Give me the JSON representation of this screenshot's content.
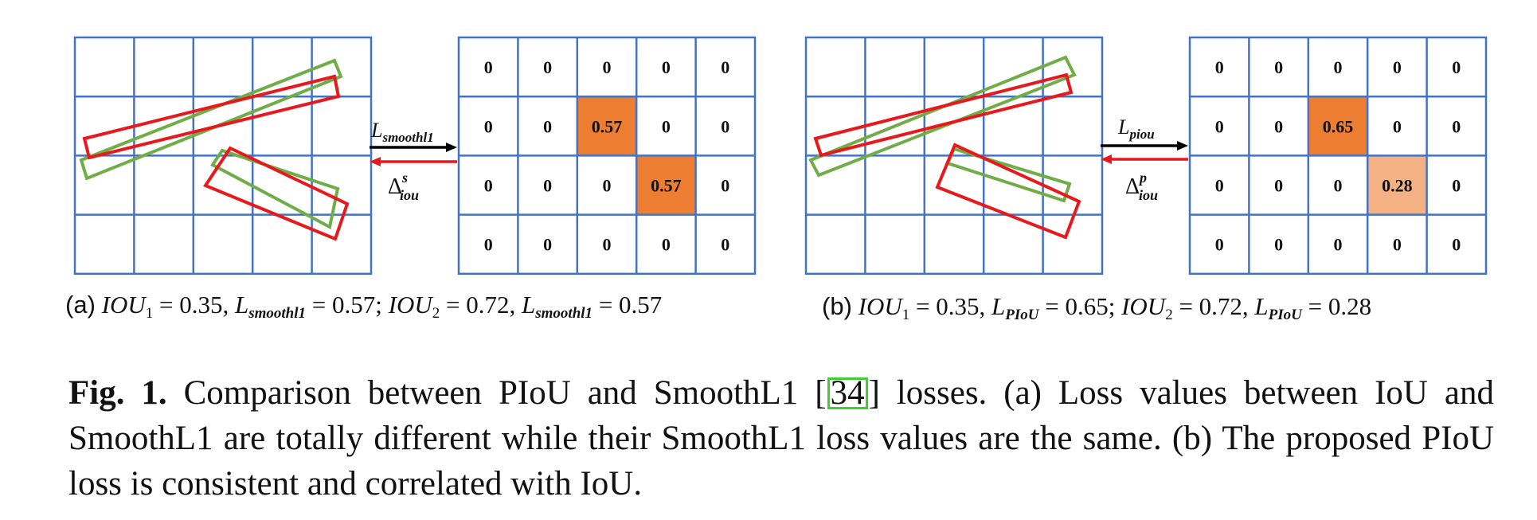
{
  "panels": [
    {
      "id": "a",
      "grid": [
        [
          "0",
          "0",
          "0",
          "0",
          "0"
        ],
        [
          "0",
          "0",
          "0.57",
          "0",
          "0"
        ],
        [
          "0",
          "0",
          "0",
          "0.57",
          "0"
        ],
        [
          "0",
          "0",
          "0",
          "0",
          "0"
        ]
      ],
      "highlights": [
        {
          "row": 1,
          "col": 2,
          "color": "#ed7d31"
        },
        {
          "row": 2,
          "col": 3,
          "color": "#ed7d31"
        }
      ],
      "arrow_top_label": "L",
      "arrow_top_sub": "smoothl1",
      "arrow_bottom_label": "Δ",
      "arrow_bottom_sup": "s",
      "arrow_bottom_sub": "iou",
      "caption": {
        "label": "(a)",
        "iou1": "IOU",
        "iou1_sub": "1",
        "iou1_val": "= 0.35,",
        "loss1": "L",
        "loss1_sub": "smoothl1",
        "loss1_val": "= 0.57;",
        "iou2": "IOU",
        "iou2_sub": "2",
        "iou2_val": "= 0.72,",
        "loss2": "L",
        "loss2_sub": "smoothl1",
        "loss2_val": "= 0.57"
      }
    },
    {
      "id": "b",
      "grid": [
        [
          "0",
          "0",
          "0",
          "0",
          "0"
        ],
        [
          "0",
          "0",
          "0.65",
          "0",
          "0"
        ],
        [
          "0",
          "0",
          "0",
          "0.28",
          "0"
        ],
        [
          "0",
          "0",
          "0",
          "0",
          "0"
        ]
      ],
      "highlights": [
        {
          "row": 1,
          "col": 2,
          "color": "#ed7d31"
        },
        {
          "row": 2,
          "col": 3,
          "color": "#f4b183"
        }
      ],
      "arrow_top_label": "L",
      "arrow_top_sub": "piou",
      "arrow_bottom_label": "Δ",
      "arrow_bottom_sup": "p",
      "arrow_bottom_sub": "iou",
      "caption": {
        "label": "(b)",
        "iou1": "IOU",
        "iou1_sub": "1",
        "iou1_val": "= 0.35,",
        "loss1": "L",
        "loss1_sub": "PIoU",
        "loss1_val": "= 0.65;",
        "iou2": "IOU",
        "iou2_sub": "2",
        "iou2_val": "= 0.72,",
        "loss2": "L",
        "loss2_sub": "PIoU",
        "loss2_val": "= 0.28"
      }
    }
  ],
  "colors": {
    "grid_line": "#4472c4",
    "predicted_box": "#e8191c",
    "ground_truth_box": "#70ad47",
    "arrow_forward": "#000000",
    "arrow_backward": "#e8191c",
    "reference_box": "#3cd030"
  },
  "caption": {
    "fig_label": "Fig. 1.",
    "text_before_ref": "Comparison between PIoU and SmoothL1 [",
    "ref": "34",
    "text_after_ref": "] losses. (a) Loss values between IoU and SmoothL1 are totally different while their SmoothL1 loss values are the same. (b) The proposed PIoU loss is consistent and correlated with IoU."
  }
}
